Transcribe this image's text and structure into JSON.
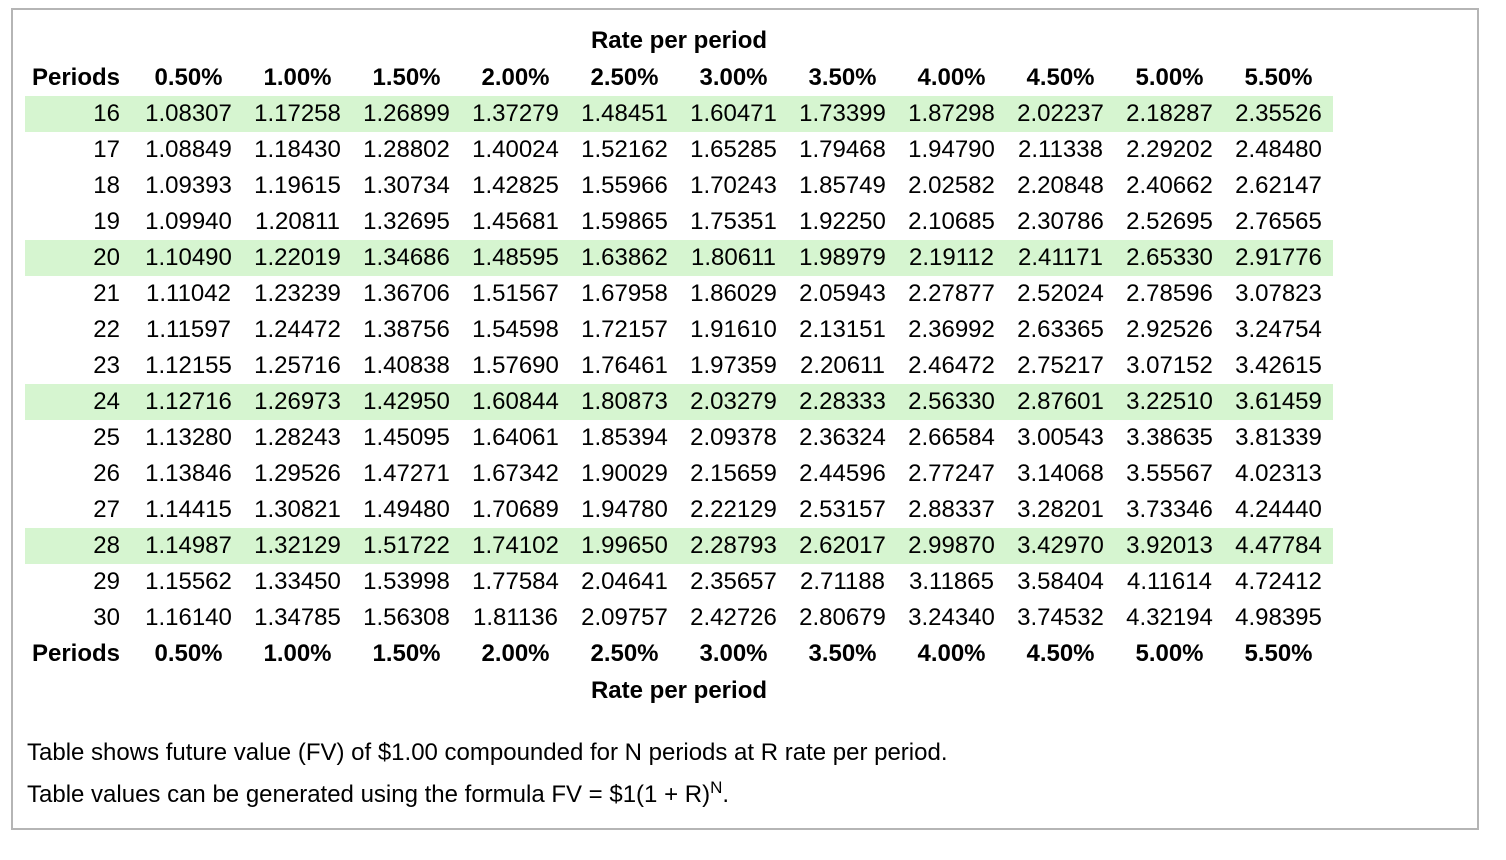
{
  "card": {
    "table": {
      "axis_title_top": "Rate per period",
      "axis_title_bottom": "Rate per period",
      "periods_header": "Periods",
      "rate_headers": [
        "0.50%",
        "1.00%",
        "1.50%",
        "2.00%",
        "2.50%",
        "3.00%",
        "3.50%",
        "4.00%",
        "4.50%",
        "5.00%",
        "5.50%"
      ],
      "rows": [
        {
          "period": "16",
          "highlighted": true,
          "values": [
            "1.08307",
            "1.17258",
            "1.26899",
            "1.37279",
            "1.48451",
            "1.60471",
            "1.73399",
            "1.87298",
            "2.02237",
            "2.18287",
            "2.35526"
          ]
        },
        {
          "period": "17",
          "highlighted": false,
          "values": [
            "1.08849",
            "1.18430",
            "1.28802",
            "1.40024",
            "1.52162",
            "1.65285",
            "1.79468",
            "1.94790",
            "2.11338",
            "2.29202",
            "2.48480"
          ]
        },
        {
          "period": "18",
          "highlighted": false,
          "values": [
            "1.09393",
            "1.19615",
            "1.30734",
            "1.42825",
            "1.55966",
            "1.70243",
            "1.85749",
            "2.02582",
            "2.20848",
            "2.40662",
            "2.62147"
          ]
        },
        {
          "period": "19",
          "highlighted": false,
          "values": [
            "1.09940",
            "1.20811",
            "1.32695",
            "1.45681",
            "1.59865",
            "1.75351",
            "1.92250",
            "2.10685",
            "2.30786",
            "2.52695",
            "2.76565"
          ]
        },
        {
          "period": "20",
          "highlighted": true,
          "values": [
            "1.10490",
            "1.22019",
            "1.34686",
            "1.48595",
            "1.63862",
            "1.80611",
            "1.98979",
            "2.19112",
            "2.41171",
            "2.65330",
            "2.91776"
          ]
        },
        {
          "period": "21",
          "highlighted": false,
          "values": [
            "1.11042",
            "1.23239",
            "1.36706",
            "1.51567",
            "1.67958",
            "1.86029",
            "2.05943",
            "2.27877",
            "2.52024",
            "2.78596",
            "3.07823"
          ]
        },
        {
          "period": "22",
          "highlighted": false,
          "values": [
            "1.11597",
            "1.24472",
            "1.38756",
            "1.54598",
            "1.72157",
            "1.91610",
            "2.13151",
            "2.36992",
            "2.63365",
            "2.92526",
            "3.24754"
          ]
        },
        {
          "period": "23",
          "highlighted": false,
          "values": [
            "1.12155",
            "1.25716",
            "1.40838",
            "1.57690",
            "1.76461",
            "1.97359",
            "2.20611",
            "2.46472",
            "2.75217",
            "3.07152",
            "3.42615"
          ]
        },
        {
          "period": "24",
          "highlighted": true,
          "values": [
            "1.12716",
            "1.26973",
            "1.42950",
            "1.60844",
            "1.80873",
            "2.03279",
            "2.28333",
            "2.56330",
            "2.87601",
            "3.22510",
            "3.61459"
          ]
        },
        {
          "period": "25",
          "highlighted": false,
          "values": [
            "1.13280",
            "1.28243",
            "1.45095",
            "1.64061",
            "1.85394",
            "2.09378",
            "2.36324",
            "2.66584",
            "3.00543",
            "3.38635",
            "3.81339"
          ]
        },
        {
          "period": "26",
          "highlighted": false,
          "values": [
            "1.13846",
            "1.29526",
            "1.47271",
            "1.67342",
            "1.90029",
            "2.15659",
            "2.44596",
            "2.77247",
            "3.14068",
            "3.55567",
            "4.02313"
          ]
        },
        {
          "period": "27",
          "highlighted": false,
          "values": [
            "1.14415",
            "1.30821",
            "1.49480",
            "1.70689",
            "1.94780",
            "2.22129",
            "2.53157",
            "2.88337",
            "3.28201",
            "3.73346",
            "4.24440"
          ]
        },
        {
          "period": "28",
          "highlighted": true,
          "values": [
            "1.14987",
            "1.32129",
            "1.51722",
            "1.74102",
            "1.99650",
            "2.28793",
            "2.62017",
            "2.99870",
            "3.42970",
            "3.92013",
            "4.47784"
          ]
        },
        {
          "period": "29",
          "highlighted": false,
          "values": [
            "1.15562",
            "1.33450",
            "1.53998",
            "1.77584",
            "2.04641",
            "2.35657",
            "2.71188",
            "3.11865",
            "3.58404",
            "4.11614",
            "4.72412"
          ]
        },
        {
          "period": "30",
          "highlighted": false,
          "values": [
            "1.16140",
            "1.34785",
            "1.56308",
            "1.81136",
            "2.09757",
            "2.42726",
            "2.80679",
            "3.24340",
            "3.74532",
            "4.32194",
            "4.98395"
          ]
        }
      ]
    },
    "notes": {
      "description": "Table shows future value (FV) of $1.00 compounded for N periods at R rate per period.",
      "formula_prefix": "Table values can be generated using the formula FV = $1(1 + R)",
      "formula_exponent": "N",
      "formula_suffix": "."
    },
    "colors": {
      "highlight_green": "#d6f5d0",
      "card_border": "#b5b5b5"
    }
  }
}
